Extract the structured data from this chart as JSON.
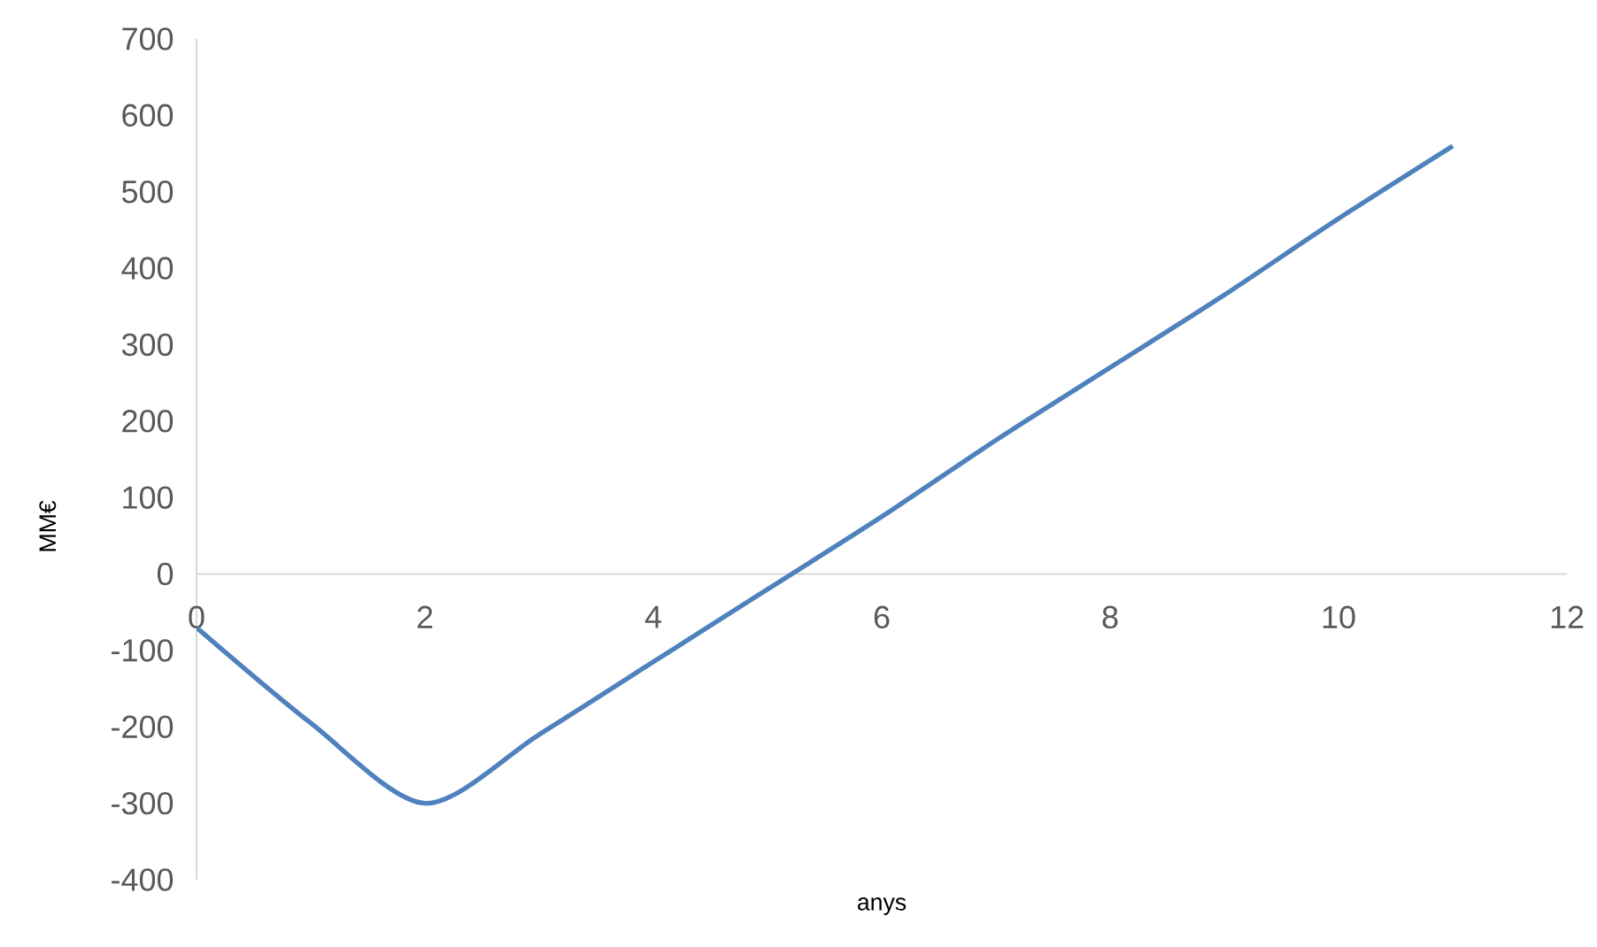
{
  "chart_data": {
    "type": "line",
    "xlabel": "anys",
    "ylabel": "MM€",
    "x": [
      0,
      1,
      2,
      3,
      4,
      5,
      6,
      7,
      8,
      9,
      10,
      11
    ],
    "series": [
      {
        "color": "#4f81bd",
        "values": [
          -70,
          -195,
          -300,
          -210,
          -115,
          -20,
          75,
          175,
          270,
          365,
          465,
          560
        ]
      }
    ],
    "xlim": [
      0,
      12
    ],
    "ylim": [
      -400,
      700
    ],
    "xticks": [
      0,
      2,
      4,
      6,
      8,
      10,
      12
    ],
    "yticks": [
      -400,
      -300,
      -200,
      -100,
      0,
      100,
      200,
      300,
      400,
      500,
      600,
      700
    ],
    "grid": false,
    "marker": "none",
    "line_style": "solid"
  }
}
